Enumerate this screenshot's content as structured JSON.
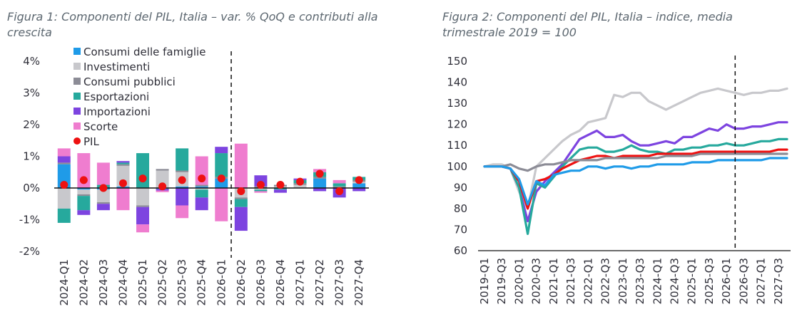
{
  "chart_data": [
    {
      "type": "bar",
      "stacked": true,
      "title": "Figura 1: Componenti del PIL, Italia – var. % QoQ e contributi alla crescita",
      "categories": [
        "2024-Q1",
        "2024-Q2",
        "2024-Q3",
        "2024-Q4",
        "2025-Q1",
        "2025-Q2",
        "2025-Q3",
        "2025-Q4",
        "2026-Q1",
        "2026-Q2",
        "2026-Q3",
        "2026-Q4",
        "2027-Q1",
        "2027-Q2",
        "2027-Q3",
        "2027-Q4"
      ],
      "ylim": [
        -2,
        4
      ],
      "yticks": [
        -2,
        -1,
        0,
        1,
        2,
        3,
        4
      ],
      "ytick_labels": [
        "-2%",
        "-1%",
        "0%",
        "1%",
        "2%",
        "3%",
        "4%"
      ],
      "forecast_divider_after": "2026-Q1",
      "legend_position": "top-left",
      "series": [
        {
          "name": "Consumi delle famiglie",
          "color": "#1f9be8",
          "values": [
            0.75,
            -0.05,
            -0.05,
            0.05,
            0.0,
            0.0,
            0.05,
            0.05,
            0.3,
            0.0,
            0.0,
            0.0,
            0.0,
            0.3,
            0.0,
            0.15
          ]
        },
        {
          "name": "Investimenti",
          "color": "#c8c8cc",
          "values": [
            -0.65,
            -0.15,
            -0.4,
            0.65,
            -0.55,
            0.55,
            0.45,
            -0.05,
            0.0,
            -0.3,
            -0.05,
            0.05,
            0.1,
            0.0,
            0.0,
            0.05
          ]
        },
        {
          "name": "Consumi pubblici",
          "color": "#8c8c96",
          "values": [
            0.05,
            -0.05,
            -0.05,
            0.05,
            -0.05,
            0.05,
            0.05,
            0.05,
            0.05,
            -0.05,
            0.05,
            0.05,
            0.05,
            0.05,
            0.05,
            0.05
          ]
        },
        {
          "name": "Esportazioni",
          "color": "#26a99d",
          "values": [
            -0.45,
            -0.45,
            0.1,
            0.05,
            1.1,
            -0.03,
            0.7,
            -0.25,
            0.75,
            -0.25,
            -0.05,
            -0.05,
            0.1,
            0.15,
            0.1,
            0.1
          ]
        },
        {
          "name": "Importazioni",
          "color": "#7d44e0",
          "values": [
            0.2,
            -0.15,
            -0.2,
            0.05,
            -0.55,
            -0.05,
            -0.55,
            -0.4,
            0.2,
            -0.75,
            0.35,
            -0.1,
            0.05,
            -0.1,
            -0.3,
            -0.1
          ]
        },
        {
          "name": "Scorte",
          "color": "#ef7dcf",
          "values": [
            0.25,
            1.1,
            0.7,
            -0.7,
            -0.25,
            -0.05,
            -0.4,
            0.9,
            -1.05,
            1.4,
            -0.05,
            0.0,
            0.0,
            0.1,
            0.1,
            0.0
          ]
        }
      ],
      "line_series": {
        "name": "PIL",
        "color": "#ee1111",
        "marker": "circle",
        "values": [
          0.1,
          0.25,
          0.0,
          0.15,
          0.3,
          0.05,
          0.25,
          0.3,
          0.3,
          -0.1,
          0.1,
          0.1,
          0.2,
          0.45,
          -0.1,
          0.25
        ]
      }
    },
    {
      "type": "line",
      "title": "Figura 2: Componenti del PIL, Italia – indice, media trimestrale 2019 = 100",
      "x": [
        "2019-Q1",
        "2019-Q2",
        "2019-Q3",
        "2019-Q4",
        "2020-Q1",
        "2020-Q2",
        "2020-Q3",
        "2020-Q4",
        "2021-Q1",
        "2021-Q2",
        "2021-Q3",
        "2021-Q4",
        "2022-Q1",
        "2022-Q2",
        "2022-Q3",
        "2022-Q4",
        "2023-Q1",
        "2023-Q2",
        "2023-Q3",
        "2023-Q4",
        "2024-Q1",
        "2024-Q2",
        "2024-Q3",
        "2024-Q4",
        "2025-Q1",
        "2025-Q2",
        "2025-Q3",
        "2025-Q4",
        "2026-Q1",
        "2026-Q2",
        "2026-Q3",
        "2026-Q4",
        "2027-Q1",
        "2027-Q2",
        "2027-Q3",
        "2027-Q4"
      ],
      "xtick_labels": [
        "2019-Q1",
        "2019-Q3",
        "2020-Q1",
        "2020-Q3",
        "2021-Q1",
        "2021-Q3",
        "2022-Q1",
        "2022-Q3",
        "2023-Q1",
        "2023-Q3",
        "2024-Q1",
        "2024-Q3",
        "2025-Q1",
        "2025-Q3",
        "2026-Q1",
        "2026-Q3",
        "2027-Q1",
        "2027-Q3"
      ],
      "ylim": [
        60,
        150
      ],
      "yticks": [
        60,
        70,
        80,
        90,
        100,
        110,
        120,
        130,
        140,
        150
      ],
      "forecast_divider_at": "2026-Q2",
      "legend": "none",
      "series": [
        {
          "color": "#c8c8cc",
          "values": [
            100,
            101,
            101,
            99,
            88,
            80,
            100,
            104,
            108,
            112,
            115,
            117,
            121,
            122,
            123,
            134,
            133,
            135,
            135,
            131,
            129,
            127,
            129,
            131,
            133,
            135,
            136,
            137,
            136,
            135,
            134,
            135,
            135,
            136,
            136,
            137
          ]
        },
        {
          "color": "#7d44e0",
          "values": [
            100,
            100,
            100,
            99,
            90,
            74,
            88,
            93,
            97,
            101,
            107,
            113,
            115,
            117,
            114,
            114,
            115,
            112,
            110,
            110,
            111,
            112,
            111,
            114,
            114,
            116,
            118,
            117,
            120,
            118,
            118,
            119,
            119,
            120,
            121,
            121
          ]
        },
        {
          "color": "#26a99d",
          "values": [
            100,
            100,
            100,
            99,
            90,
            68,
            92,
            90,
            95,
            100,
            104,
            108,
            109,
            109,
            107,
            107,
            108,
            110,
            108,
            107,
            107,
            106,
            108,
            108,
            109,
            109,
            110,
            110,
            111,
            110,
            110,
            111,
            112,
            112,
            113,
            113
          ]
        },
        {
          "color": "#ee1111",
          "values": [
            100,
            100,
            100,
            99,
            93,
            80,
            93,
            94,
            96,
            99,
            101,
            103,
            104,
            105,
            105,
            104,
            105,
            105,
            105,
            105,
            106,
            106,
            106,
            106,
            106,
            107,
            107,
            107,
            107,
            107,
            107,
            107,
            107,
            107,
            108,
            108
          ]
        },
        {
          "color": "#8c8c96",
          "values": [
            100,
            100,
            100,
            101,
            99,
            98,
            100,
            101,
            101,
            102,
            103,
            103,
            103,
            103,
            104,
            104,
            104,
            104,
            104,
            104,
            104,
            105,
            105,
            105,
            105,
            106,
            106,
            106,
            106,
            106,
            106,
            106,
            106,
            106,
            106,
            106
          ]
        },
        {
          "color": "#1f9be8",
          "values": [
            100,
            100,
            100,
            99,
            94,
            82,
            93,
            91,
            96,
            97,
            98,
            98,
            100,
            100,
            99,
            100,
            100,
            99,
            100,
            100,
            101,
            101,
            101,
            101,
            102,
            102,
            102,
            103,
            103,
            103,
            103,
            103,
            103,
            104,
            104,
            104
          ]
        }
      ]
    }
  ]
}
